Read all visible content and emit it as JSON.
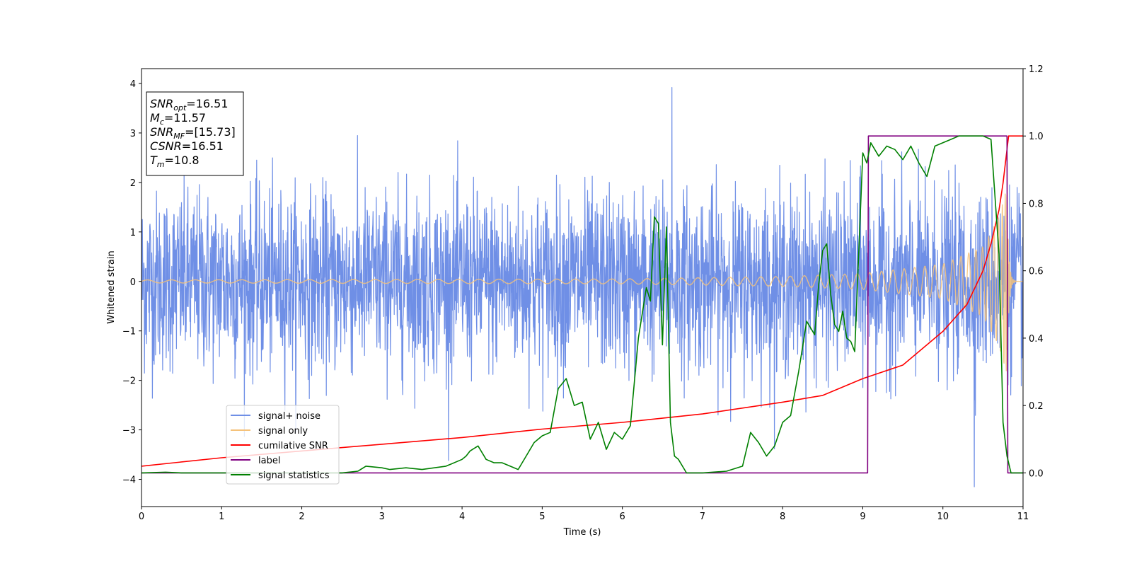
{
  "chart_data": {
    "type": "line",
    "xlabel": "Time (s)",
    "ylabel": "Whitened strain",
    "xlim": [
      0,
      11
    ],
    "ylim": [
      -4.55,
      4.3
    ],
    "y2lim": [
      -0.1,
      1.2
    ],
    "xticks": [
      "0",
      "1",
      "2",
      "3",
      "4",
      "5",
      "6",
      "7",
      "8",
      "9",
      "10",
      "11"
    ],
    "yticks": [
      "4",
      "3",
      "2",
      "1",
      "0",
      "−1",
      "−2",
      "−3",
      "−4"
    ],
    "y2ticks": [
      "1.2",
      "1.0",
      "0.8",
      "0.6",
      "0.4",
      "0.2",
      "0.0"
    ],
    "legend_position": "lower-left",
    "info_box": {
      "position": "top-left",
      "lines": [
        {
          "sym": "SNR",
          "sub": "opt",
          "val": "=16.51"
        },
        {
          "sym": "M",
          "sub": "c",
          "val": "=11.57"
        },
        {
          "sym": "SNR",
          "sub": "MF",
          "val": "=[15.73]"
        },
        {
          "sym": "CSNR",
          "sub": "",
          "val": "=16.51"
        },
        {
          "sym": "T",
          "sub": "m",
          "val": "=10.8"
        }
      ]
    },
    "series": [
      {
        "name": "signal+ noise",
        "color": "#6f8fe6",
        "axis": "left",
        "kind": "noise",
        "std": 0.9,
        "extremes": [
          -4.15,
          3.92
        ]
      },
      {
        "name": "signal only",
        "color": "#f5c27a",
        "axis": "left",
        "kind": "chirp",
        "merger_time": 10.8,
        "envelope": {
          "t": [
            0,
            6,
            8,
            9,
            10,
            10.5,
            10.7,
            10.8
          ],
          "amp": [
            0.03,
            0.05,
            0.1,
            0.16,
            0.35,
            0.7,
            1.3,
            1.9
          ]
        }
      },
      {
        "name": "cumilative SNR",
        "color": "#ff0000",
        "axis": "right",
        "x": [
          0,
          1,
          2,
          3,
          4,
          5,
          6,
          7,
          8,
          8.5,
          9,
          9.5,
          10,
          10.3,
          10.5,
          10.6,
          10.7,
          10.75,
          10.8,
          10.82,
          11
        ],
        "y": [
          0.02,
          0.045,
          0.065,
          0.085,
          0.105,
          0.13,
          0.15,
          0.175,
          0.21,
          0.23,
          0.28,
          0.32,
          0.42,
          0.5,
          0.6,
          0.68,
          0.78,
          0.86,
          0.96,
          1.0,
          1.0
        ]
      },
      {
        "name": "label",
        "color": "#800080",
        "axis": "right",
        "x": [
          0,
          9.06,
          9.07,
          10.8,
          10.81,
          11
        ],
        "y": [
          0.0,
          0.0,
          1.0,
          1.0,
          0.0,
          0.0
        ]
      },
      {
        "name": "signal statistics",
        "color": "#008000",
        "axis": "right",
        "x": [
          0,
          0.3,
          0.5,
          1,
          1.5,
          2,
          2.5,
          2.7,
          2.8,
          3,
          3.1,
          3.3,
          3.5,
          3.8,
          4,
          4.05,
          4.1,
          4.2,
          4.3,
          4.4,
          4.5,
          4.6,
          4.7,
          4.8,
          4.9,
          5,
          5.1,
          5.2,
          5.3,
          5.4,
          5.5,
          5.6,
          5.7,
          5.8,
          5.9,
          6.0,
          6.1,
          6.2,
          6.3,
          6.35,
          6.4,
          6.45,
          6.5,
          6.55,
          6.6,
          6.65,
          6.7,
          6.8,
          7.0,
          7.3,
          7.5,
          7.6,
          7.7,
          7.8,
          7.9,
          8.0,
          8.1,
          8.2,
          8.3,
          8.4,
          8.45,
          8.5,
          8.55,
          8.6,
          8.65,
          8.7,
          8.75,
          8.8,
          8.85,
          8.9,
          9.0,
          9.05,
          9.1,
          9.2,
          9.3,
          9.4,
          9.5,
          9.6,
          9.7,
          9.8,
          9.9,
          10.0,
          10.1,
          10.2,
          10.3,
          10.4,
          10.5,
          10.6,
          10.7,
          10.75,
          10.8,
          10.85,
          10.9,
          11
        ],
        "y": [
          0.0,
          0.002,
          0.0,
          0.0,
          0.0,
          0.0,
          0.0,
          0.005,
          0.02,
          0.015,
          0.01,
          0.015,
          0.01,
          0.02,
          0.04,
          0.05,
          0.065,
          0.08,
          0.04,
          0.03,
          0.03,
          0.02,
          0.01,
          0.05,
          0.09,
          0.11,
          0.12,
          0.25,
          0.28,
          0.2,
          0.21,
          0.1,
          0.15,
          0.07,
          0.12,
          0.1,
          0.14,
          0.4,
          0.55,
          0.51,
          0.76,
          0.74,
          0.38,
          0.73,
          0.15,
          0.05,
          0.04,
          0.0,
          0.0,
          0.005,
          0.02,
          0.12,
          0.09,
          0.05,
          0.08,
          0.15,
          0.17,
          0.3,
          0.45,
          0.41,
          0.56,
          0.66,
          0.68,
          0.53,
          0.44,
          0.42,
          0.48,
          0.4,
          0.39,
          0.36,
          0.95,
          0.92,
          0.98,
          0.94,
          0.97,
          0.96,
          0.93,
          0.97,
          0.92,
          0.88,
          0.97,
          0.98,
          0.99,
          1.0,
          1.0,
          1.0,
          1.0,
          0.99,
          0.65,
          0.15,
          0.05,
          0.0,
          0.0,
          0.0
        ]
      }
    ]
  }
}
